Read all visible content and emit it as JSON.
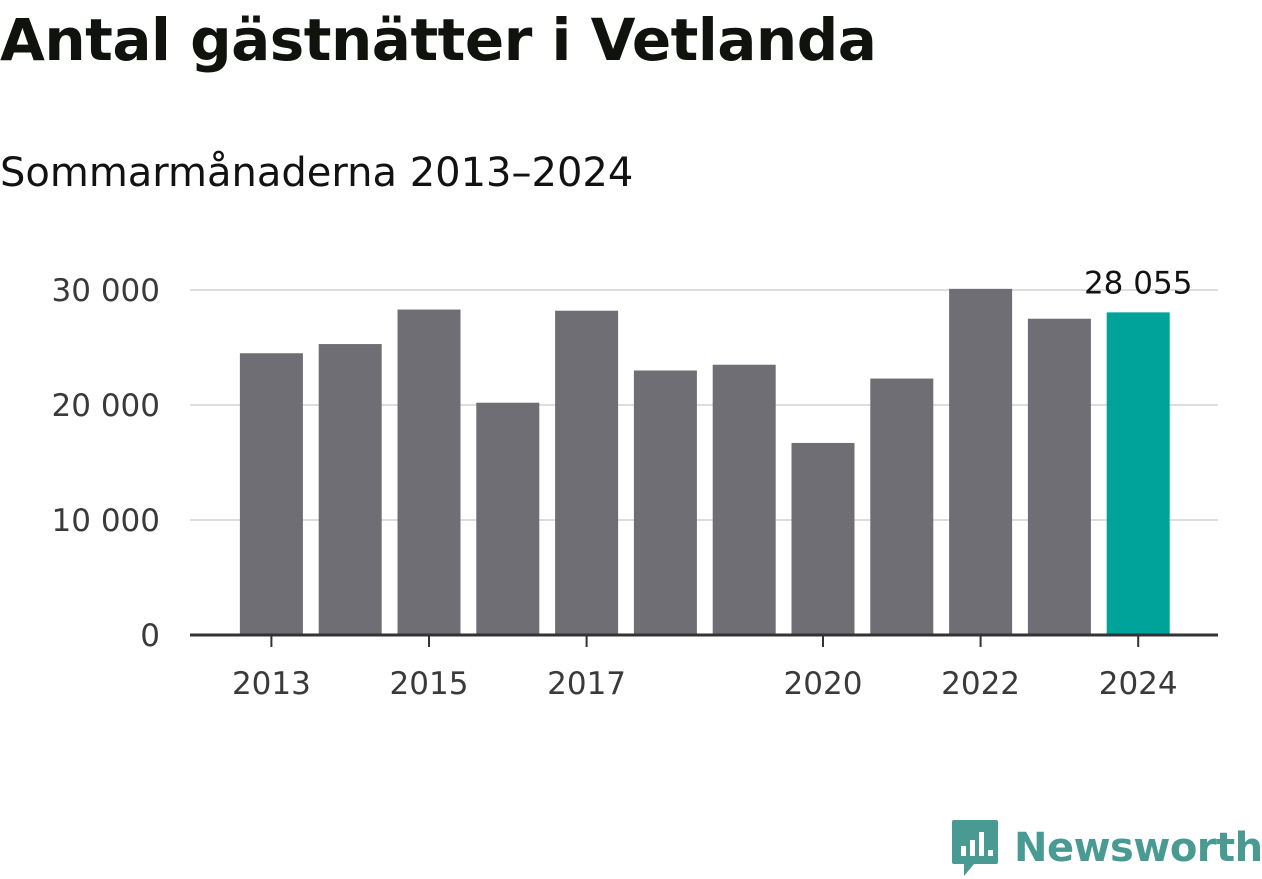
{
  "header": {
    "title": "Antal gästnätter i Vetlanda",
    "subtitle": "Sommarmånaderna 2013–2024"
  },
  "branding": {
    "name": "Newsworthy",
    "color": "#4a9a94"
  },
  "colors": {
    "bar": "#6f6e74",
    "highlight": "#00a39a",
    "grid": "#dddddd",
    "axis": "#333333"
  },
  "chart_data": {
    "type": "bar",
    "title": "Antal gästnätter i Vetlanda",
    "subtitle": "Sommarmånaderna 2013–2024",
    "categories": [
      "2013",
      "2014",
      "2015",
      "2016",
      "2017",
      "2018",
      "2019",
      "2020",
      "2021",
      "2022",
      "2023",
      "2024"
    ],
    "values": [
      24500,
      25300,
      28300,
      20200,
      28200,
      23000,
      23500,
      16700,
      22300,
      30100,
      27500,
      28055
    ],
    "x_tick_labels": [
      "2013",
      "2015",
      "2017",
      "2020",
      "2022",
      "2024"
    ],
    "y_ticks": [
      0,
      10000,
      20000,
      30000
    ],
    "y_tick_labels": [
      "0",
      "10 000",
      "20 000",
      "30 000"
    ],
    "ylim": [
      0,
      30000
    ],
    "grid": true,
    "highlight_index": 11,
    "data_labels": [
      {
        "index": 11,
        "text": "28 055"
      }
    ]
  }
}
